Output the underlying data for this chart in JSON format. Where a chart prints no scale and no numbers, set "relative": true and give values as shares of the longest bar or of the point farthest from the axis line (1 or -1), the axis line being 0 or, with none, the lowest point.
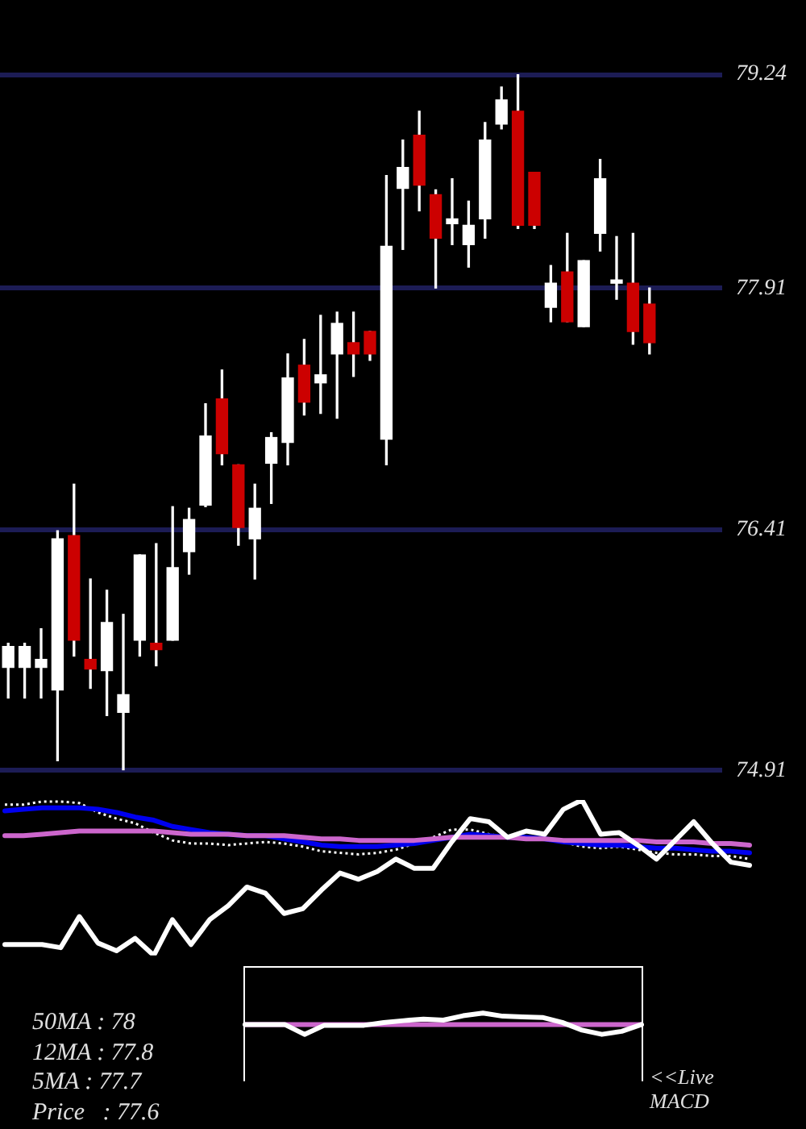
{
  "chart_data": [
    {
      "type": "candlestick",
      "categories": [
        null,
        null,
        null,
        null,
        null,
        null,
        null,
        null,
        null,
        null,
        null,
        null,
        null,
        null,
        null,
        null,
        null,
        null,
        null,
        null,
        null,
        null,
        null,
        null,
        null,
        null,
        null,
        null,
        null,
        null,
        null,
        null,
        null,
        null,
        null,
        null,
        null,
        null,
        null,
        null
      ],
      "ohlc": [
        [
          75.55,
          75.7,
          75.36,
          75.68
        ],
        [
          75.55,
          75.7,
          75.36,
          75.68
        ],
        [
          75.55,
          75.79,
          75.36,
          75.6
        ],
        [
          75.41,
          76.4,
          74.97,
          76.35
        ],
        [
          76.37,
          76.69,
          75.62,
          75.72
        ],
        [
          75.6,
          76.1,
          75.42,
          75.54
        ],
        [
          75.53,
          76.03,
          75.25,
          75.83
        ],
        [
          75.27,
          75.88,
          74.91,
          75.38
        ],
        [
          75.72,
          76.25,
          75.62,
          76.25
        ],
        [
          75.7,
          76.32,
          75.56,
          75.66
        ],
        [
          75.72,
          76.55,
          75.72,
          76.17
        ],
        [
          76.27,
          76.54,
          76.13,
          76.47
        ],
        [
          76.56,
          77.19,
          76.55,
          76.99
        ],
        [
          77.22,
          77.4,
          76.81,
          76.88
        ],
        [
          76.81,
          76.81,
          76.31,
          76.42
        ],
        [
          76.35,
          76.69,
          76.1,
          76.54
        ],
        [
          76.82,
          77.01,
          76.57,
          76.98
        ],
        [
          76.95,
          77.5,
          76.81,
          77.35
        ],
        [
          77.43,
          77.59,
          77.12,
          77.2
        ],
        [
          77.32,
          77.74,
          77.13,
          77.37
        ],
        [
          77.5,
          77.76,
          77.1,
          77.69
        ],
        [
          77.57,
          77.76,
          77.36,
          77.5
        ],
        [
          77.64,
          77.64,
          77.46,
          77.5
        ],
        [
          76.97,
          78.61,
          76.81,
          78.17
        ],
        [
          78.53,
          78.83,
          78.15,
          78.66
        ],
        [
          78.86,
          79.01,
          78.39,
          78.55
        ],
        [
          78.49,
          78.52,
          77.91,
          78.22
        ],
        [
          78.31,
          78.59,
          78.18,
          78.34
        ],
        [
          78.18,
          78.45,
          78.04,
          78.3
        ],
        [
          78.34,
          78.94,
          78.22,
          78.83
        ],
        [
          78.93,
          79.16,
          78.9,
          79.08
        ],
        [
          79.01,
          79.24,
          78.28,
          78.3
        ],
        [
          78.63,
          78.63,
          78.28,
          78.3
        ],
        [
          77.79,
          78.05,
          77.7,
          77.94
        ],
        [
          78.01,
          78.25,
          77.7,
          77.7
        ],
        [
          77.67,
          78.08,
          77.67,
          78.08
        ],
        [
          78.25,
          78.71,
          78.14,
          78.59
        ],
        [
          77.94,
          78.23,
          77.84,
          77.96
        ],
        [
          77.94,
          78.25,
          77.56,
          77.64
        ],
        [
          77.81,
          77.91,
          77.5,
          77.57
        ]
      ],
      "colors": [
        "#ffffff",
        "#ffffff",
        "#ffffff",
        "#ffffff",
        "#cc0000",
        "#cc0000",
        "#ffffff",
        "#ffffff",
        "#ffffff",
        "#cc0000",
        "#ffffff",
        "#ffffff",
        "#ffffff",
        "#cc0000",
        "#cc0000",
        "#ffffff",
        "#ffffff",
        "#ffffff",
        "#cc0000",
        "#ffffff",
        "#ffffff",
        "#cc0000",
        "#cc0000",
        "#ffffff",
        "#ffffff",
        "#cc0000",
        "#cc0000",
        "#ffffff",
        "#ffffff",
        "#ffffff",
        "#ffffff",
        "#cc0000",
        "#cc0000",
        "#ffffff",
        "#cc0000",
        "#ffffff",
        "#ffffff",
        "#ffffff",
        "#cc0000",
        "#cc0000"
      ],
      "ylim": [
        74.91,
        79.24
      ],
      "yticks": [
        74.91,
        76.41,
        77.91,
        79.24
      ],
      "grid": "y",
      "tick_labels": "y"
    },
    {
      "type": "line",
      "relative": true,
      "categories": [
        null,
        null,
        null,
        null,
        null,
        null,
        null,
        null,
        null,
        null,
        null,
        null,
        null,
        null,
        null,
        null,
        null,
        null,
        null,
        null,
        null,
        null,
        null,
        null,
        null,
        null,
        null,
        null,
        null,
        null,
        null,
        null,
        null,
        null,
        null,
        null,
        null,
        null,
        null,
        null,
        null
      ],
      "series": [
        {
          "color": "#ffffff",
          "line_style": "dotted",
          "values": [
            0.97,
            0.97,
            0.99,
            0.99,
            0.98,
            0.92,
            0.88,
            0.85,
            0.79,
            0.74,
            0.72,
            0.72,
            0.71,
            0.72,
            0.73,
            0.72,
            0.7,
            0.67,
            0.66,
            0.65,
            0.66,
            0.68,
            0.72,
            0.76,
            0.81,
            0.81,
            0.78,
            0.76,
            0.76,
            0.75,
            0.73,
            0.7,
            0.69,
            0.7,
            0.68,
            0.66,
            0.65,
            0.65,
            0.64,
            0.64,
            0.62
          ]
        },
        {
          "color": "#0000ee",
          "values": [
            0.93,
            0.94,
            0.95,
            0.95,
            0.95,
            0.94,
            0.92,
            0.89,
            0.87,
            0.83,
            0.81,
            0.79,
            0.78,
            0.77,
            0.77,
            0.75,
            0.73,
            0.71,
            0.7,
            0.7,
            0.7,
            0.71,
            0.72,
            0.74,
            0.76,
            0.78,
            0.77,
            0.76,
            0.76,
            0.75,
            0.73,
            0.72,
            0.71,
            0.71,
            0.7,
            0.69,
            0.69,
            0.68,
            0.67,
            0.67,
            0.66
          ]
        },
        {
          "color": "#cc66cc",
          "values": [
            0.77,
            0.77,
            0.78,
            0.79,
            0.8,
            0.8,
            0.8,
            0.8,
            0.8,
            0.79,
            0.78,
            0.78,
            0.78,
            0.77,
            0.77,
            0.77,
            0.76,
            0.75,
            0.75,
            0.74,
            0.74,
            0.74,
            0.74,
            0.75,
            0.76,
            0.76,
            0.76,
            0.76,
            0.75,
            0.75,
            0.74,
            0.74,
            0.74,
            0.74,
            0.74,
            0.73,
            0.73,
            0.73,
            0.72,
            0.72,
            0.71
          ]
        },
        {
          "color": "#ffffff",
          "values": [
            0.07,
            0.07,
            0.07,
            0.05,
            0.25,
            0.08,
            0.03,
            0.11,
            0,
            0.23,
            0.07,
            0.23,
            0.32,
            0.44,
            0.4,
            0.27,
            0.3,
            0.42,
            0.53,
            0.49,
            0.54,
            0.62,
            0.56,
            0.56,
            0.73,
            0.88,
            0.86,
            0.76,
            0.8,
            0.78,
            0.94,
            1,
            0.78,
            0.79,
            0.71,
            0.62,
            0.74,
            0.86,
            0.72,
            0.6,
            0.58
          ]
        }
      ],
      "annotations": [
        "50MA : 78",
        "12MA : 77.8",
        "5MA : 77.7",
        "Price   : 77.6"
      ]
    },
    {
      "type": "line",
      "relative": true,
      "categories": [
        null,
        null,
        null,
        null,
        null,
        null,
        null,
        null,
        null,
        null,
        null,
        null,
        null,
        null,
        null,
        null,
        null,
        null,
        null,
        null,
        null
      ],
      "series": [
        {
          "color": "#ffffff",
          "values": [
            0,
            0,
            0,
            -0.87,
            -0.07,
            -0.07,
            -0.07,
            0.17,
            0.34,
            0.48,
            0.38,
            0.77,
            1,
            0.73,
            0.67,
            0.62,
            0.18,
            -0.5,
            -0.87,
            -0.6,
            0
          ]
        }
      ],
      "ref_lines": [
        {
          "axis": "y",
          "value": 0,
          "color": "#cc66cc"
        }
      ],
      "annotations": [
        "<<Live MACD"
      ]
    }
  ]
}
